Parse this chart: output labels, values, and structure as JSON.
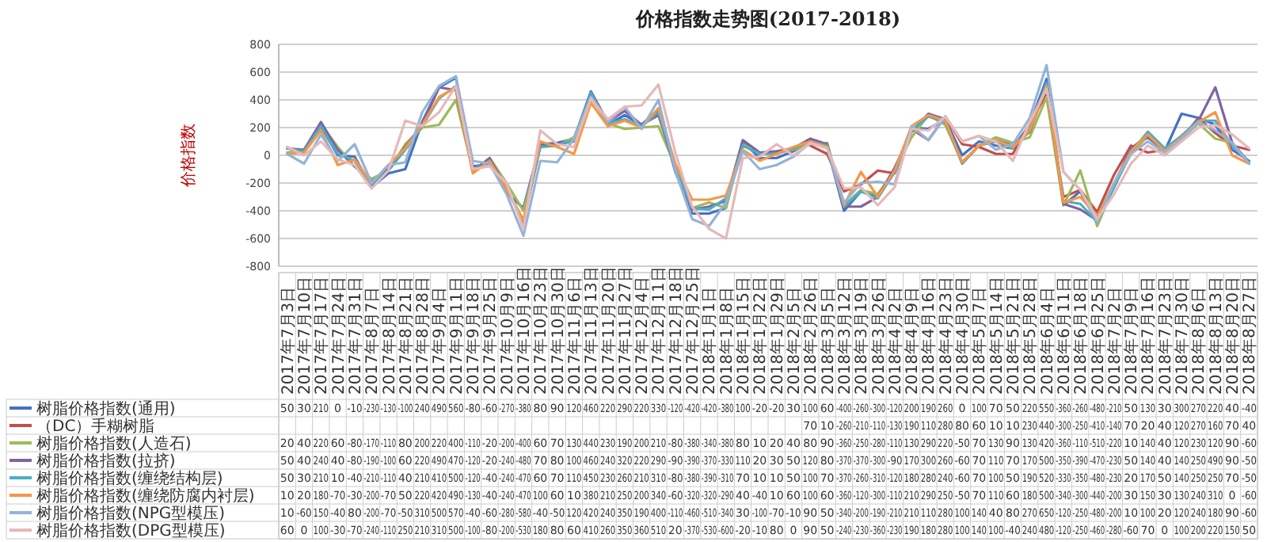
{
  "chart_data": {
    "type": "line",
    "title": "价格指数走势图(2017-2018)",
    "ylabel": "价格指数",
    "categories": [
      "2017年7月3日",
      "2017年7月10日",
      "2017年7月17日",
      "2017年7月24日",
      "2017年7月31日",
      "2017年8月7日",
      "2017年8月14日",
      "2017年8月21日",
      "2017年8月28日",
      "2017年9月4日",
      "2017年9月11日",
      "2017年9月18日",
      "2017年9月25日",
      "2017年10月9日",
      "2017年10月16日",
      "2017年10月23日",
      "2017年10月30日",
      "2017年11月6日",
      "2017年11月13日",
      "2017年11月20日",
      "2017年11月27日",
      "2017年12月4日",
      "2017年12月11日",
      "2017年12月18日",
      "2017年12月25日",
      "2018年1月1日",
      "2018年1月8日",
      "2018年1月15日",
      "2018年1月22日",
      "2018年1月29日",
      "2018年2月5日",
      "2018年2月26日",
      "2018年3月5日",
      "2018年3月12日",
      "2018年3月19日",
      "2018年3月26日",
      "2018年4月2日",
      "2018年4月9日",
      "2018年4月16日",
      "2018年4月23日",
      "2018年4月30日",
      "2018年5月7日",
      "2018年5月14日",
      "2018年5月21日",
      "2018年5月28日",
      "2018年6月4日",
      "2018年6月11日",
      "2018年6月18日",
      "2018年6月25日",
      "2018年7月2日",
      "2018年7月9日",
      "2018年7月16日",
      "2018年7月23日",
      "2018年7月30日",
      "2018年8月6日",
      "2018年8月13日",
      "2018年8月20日",
      "2018年8月27日"
    ],
    "series": [
      {
        "name": "树脂价格指数(通用)",
        "color": "#4472c4",
        "values": [
          50,
          30,
          210,
          0,
          -10,
          -230,
          -130,
          -100,
          240,
          490,
          560,
          -80,
          -60,
          -270,
          -380,
          80,
          90,
          120,
          460,
          220,
          290,
          220,
          330,
          -120,
          -420,
          -420,
          -380,
          100,
          -20,
          -20,
          30,
          100,
          60,
          -400,
          -260,
          -300,
          -120,
          200,
          190,
          260,
          0,
          100,
          70,
          50,
          220,
          550,
          -360,
          -260,
          -480,
          -210,
          50,
          130,
          30,
          300,
          270,
          220,
          40,
          -40
        ]
      },
      {
        "name": "（DC）手糊树脂",
        "color": "#c0504d",
        "values": [
          null,
          null,
          null,
          null,
          null,
          null,
          null,
          null,
          null,
          null,
          null,
          null,
          null,
          null,
          null,
          null,
          null,
          null,
          null,
          null,
          null,
          null,
          null,
          null,
          null,
          null,
          null,
          null,
          null,
          null,
          null,
          70,
          10,
          -260,
          -210,
          -110,
          -130,
          190,
          110,
          280,
          80,
          60,
          10,
          10,
          230,
          440,
          -300,
          -250,
          -410,
          -140,
          70,
          20,
          40,
          120,
          270,
          160,
          70,
          40
        ]
      },
      {
        "name": "树脂价格指数(人造石)",
        "color": "#9bbb59",
        "values": [
          20,
          40,
          220,
          60,
          -80,
          -170,
          -110,
          80,
          200,
          220,
          400,
          -110,
          -20,
          -200,
          -400,
          60,
          70,
          130,
          440,
          230,
          190,
          200,
          210,
          -80,
          -380,
          -340,
          -380,
          80,
          10,
          20,
          40,
          80,
          90,
          -360,
          -250,
          -280,
          -110,
          130,
          290,
          220,
          -50,
          70,
          130,
          90,
          130,
          420,
          -360,
          -110,
          -510,
          -220,
          10,
          140,
          40,
          120,
          230,
          120,
          90,
          -60
        ]
      },
      {
        "name": "树脂价格指数(拉挤)",
        "color": "#8064a2",
        "values": [
          50,
          40,
          240,
          40,
          -80,
          -190,
          -100,
          60,
          220,
          490,
          470,
          -120,
          -20,
          -240,
          -480,
          70,
          80,
          100,
          460,
          240,
          320,
          220,
          290,
          -90,
          -390,
          -370,
          -330,
          110,
          20,
          30,
          50,
          120,
          80,
          -370,
          -370,
          -300,
          -90,
          170,
          300,
          260,
          -60,
          70,
          110,
          70,
          170,
          500,
          -350,
          -390,
          -470,
          -230,
          50,
          140,
          40,
          140,
          250,
          490,
          90,
          -50
        ]
      },
      {
        "name": "树脂价格指数(缠绕结构层)",
        "color": "#4bacc6",
        "values": [
          50,
          30,
          210,
          10,
          -40,
          -210,
          -110,
          40,
          210,
          410,
          500,
          -120,
          -40,
          -240,
          -470,
          60,
          70,
          110,
          450,
          230,
          260,
          210,
          310,
          -80,
          -380,
          -390,
          -310,
          70,
          10,
          10,
          50,
          100,
          70,
          -370,
          -260,
          -310,
          -120,
          180,
          280,
          240,
          -60,
          70,
          100,
          50,
          190,
          520,
          -330,
          -350,
          -480,
          -230,
          20,
          170,
          50,
          140,
          250,
          250,
          70,
          -50
        ]
      },
      {
        "name": "树脂价格指数(缠绕防腐内衬层)",
        "color": "#f79646",
        "values": [
          10,
          20,
          180,
          -70,
          -30,
          -200,
          -70,
          50,
          220,
          420,
          490,
          -130,
          -40,
          -240,
          -470,
          100,
          60,
          10,
          380,
          210,
          250,
          200,
          340,
          -60,
          -320,
          -320,
          -290,
          40,
          -40,
          10,
          60,
          100,
          60,
          -360,
          -120,
          -300,
          -110,
          210,
          290,
          250,
          -50,
          70,
          110,
          60,
          180,
          500,
          -340,
          -300,
          -440,
          -200,
          30,
          150,
          30,
          130,
          240,
          310,
          0,
          -60
        ]
      },
      {
        "name": "树脂价格指数(NPG型模压)",
        "color": "#95b3d7",
        "values": [
          10,
          -60,
          150,
          -40,
          80,
          -200,
          -70,
          -50,
          310,
          500,
          570,
          -40,
          -60,
          -280,
          -580,
          -40,
          -50,
          120,
          420,
          240,
          350,
          190,
          400,
          -110,
          -460,
          -510,
          -340,
          30,
          -100,
          -70,
          -10,
          90,
          50,
          -340,
          -200,
          -190,
          -210,
          210,
          110,
          280,
          100,
          140,
          40,
          80,
          270,
          650,
          -120,
          -250,
          -480,
          -200,
          10,
          100,
          20,
          120,
          240,
          180,
          90,
          -60
        ]
      },
      {
        "name": "树脂价格指数(DPG型模压)",
        "color": "#e6b9b8",
        "values": [
          60,
          0,
          100,
          -30,
          -70,
          -240,
          -110,
          250,
          210,
          310,
          500,
          -100,
          -80,
          -200,
          -530,
          180,
          80,
          60,
          410,
          260,
          350,
          360,
          510,
          20,
          -370,
          -530,
          -600,
          -20,
          -10,
          80,
          0,
          90,
          50,
          -240,
          -230,
          -360,
          -230,
          190,
          180,
          280,
          100,
          140,
          100,
          -40,
          240,
          480,
          -120,
          -250,
          -460,
          -280,
          -60,
          70,
          0,
          100,
          200,
          220,
          150,
          50
        ]
      }
    ],
    "ylim": [
      -800,
      800
    ],
    "yticks": [
      -800,
      -600,
      -400,
      -200,
      0,
      200,
      400,
      600,
      800
    ],
    "grid": "y",
    "legend": "bottom",
    "data_labels": true
  }
}
